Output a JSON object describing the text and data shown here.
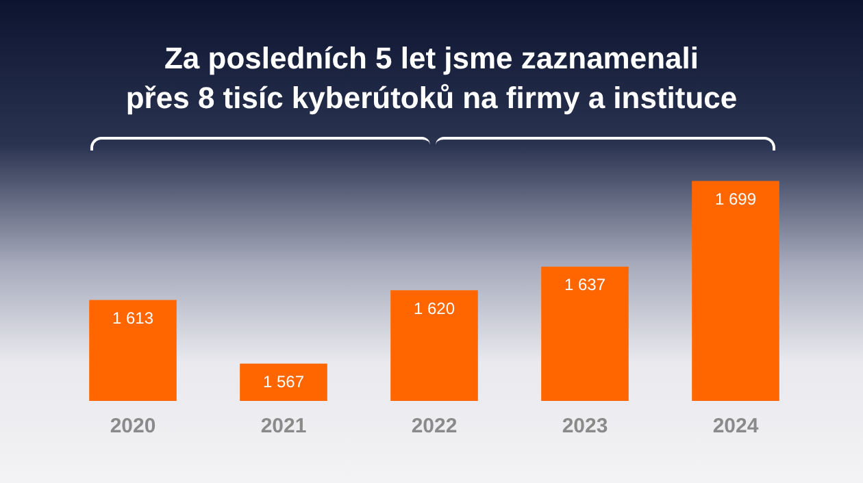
{
  "chart_data": {
    "type": "bar",
    "title": "Za posledních 5 let jsme zaznamenali\npřes 8 tisíc kyberútoků na firmy a instituce",
    "categories": [
      "2020",
      "2021",
      "2022",
      "2023",
      "2024"
    ],
    "values": [
      1613,
      1567,
      1620,
      1637,
      1699
    ],
    "color": "#ff6600",
    "tick_labels": "x",
    "grid": false,
    "legend": false,
    "data_labels": true
  }
}
